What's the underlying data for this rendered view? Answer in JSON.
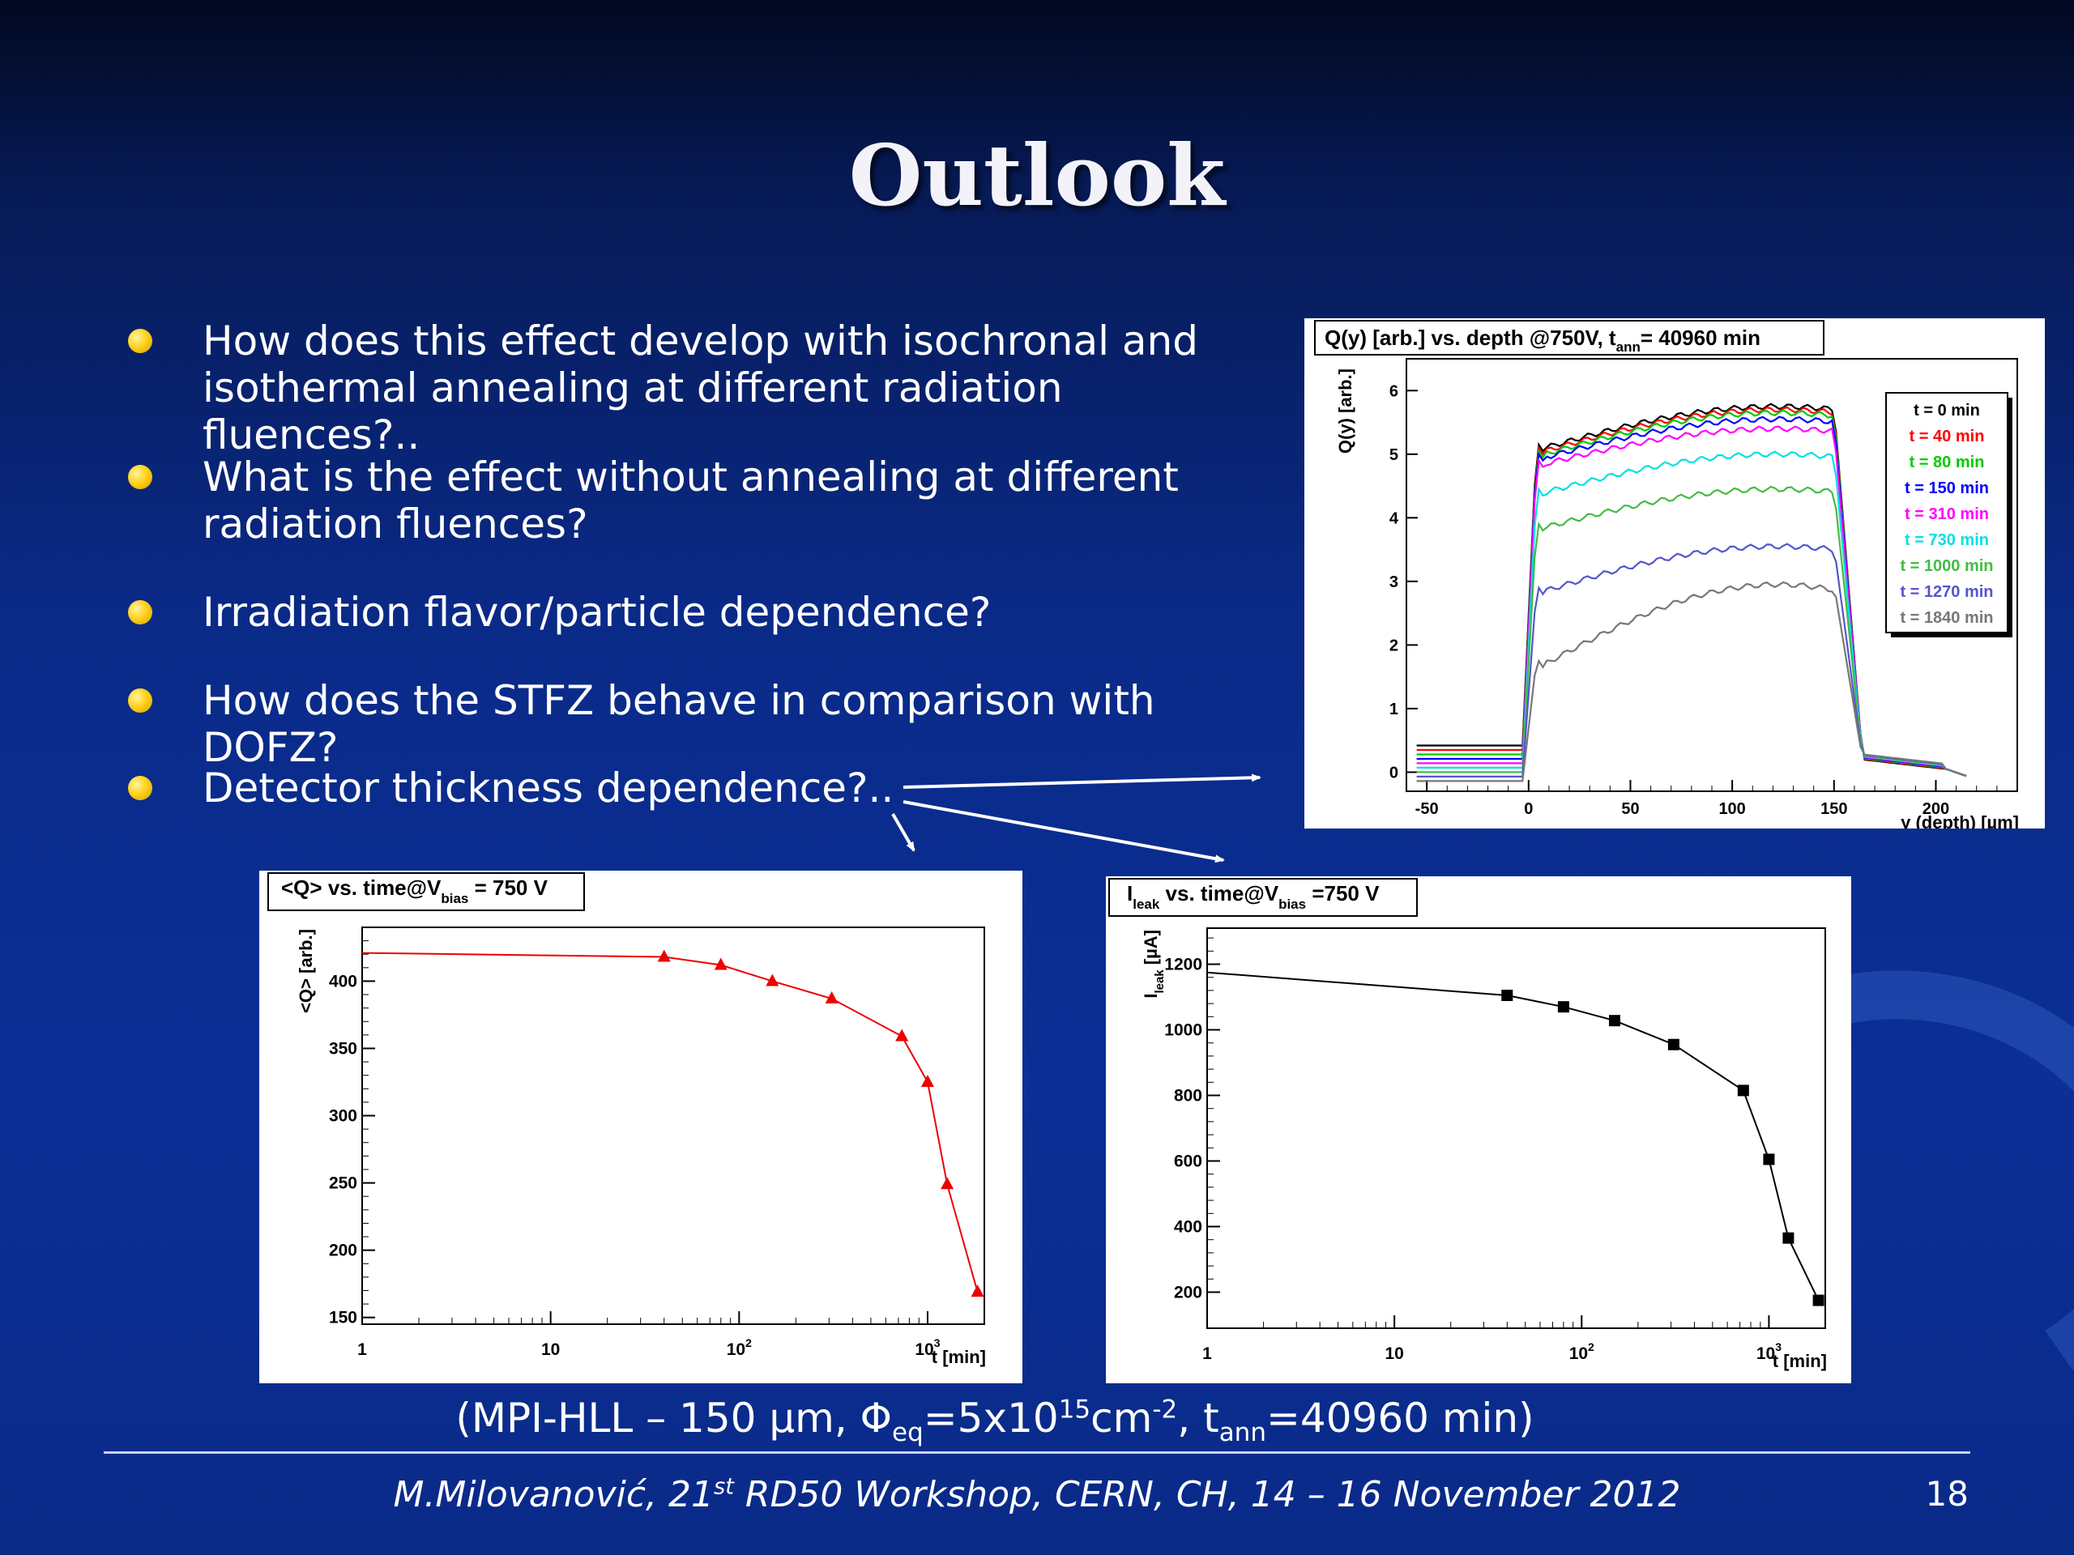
{
  "slide": {
    "title": "Outlook",
    "bullets": [
      "How does this effect develop with isochronal and isothermal annealing at different radiation fluences?..",
      "What is the effect without annealing at different radiation fluences?",
      "Irradiation flavor/particle dependence?",
      "How does the STFZ behave in comparison with DOFZ?",
      "Detector thickness dependence?.."
    ],
    "caption": {
      "open": "(MPI-HLL – 150 µm, Φ",
      "phi_sub": "eq",
      "fluence": "=5x10",
      "fluence_exp": "15",
      "unit": "cm",
      "unit_exp": "-2",
      "t_sep": ", t",
      "t_sub": "ann",
      "t_val": "=40960 min)"
    },
    "footer": {
      "author": "M.Milovanović, 21",
      "ord": "st",
      "event": " RD50 Workshop, CERN, CH, 14 – 16 November 2012"
    },
    "page_number": "18",
    "colors": {
      "bullet": "#ffd21a",
      "background": "#0a2a88"
    }
  },
  "chart_data": [
    {
      "type": "line",
      "title": "Q(y) [arb.] vs. depth @750V, t",
      "title_sub": "ann",
      "title_tail": "= 40960 min",
      "xlabel": "y (depth) [µm]",
      "ylabel": "Q(y) [arb.]",
      "xlim": [
        -60,
        240
      ],
      "ylim": [
        -0.3,
        6.5
      ],
      "xticks": [
        "-50",
        "0",
        "50",
        "100",
        "150",
        "200"
      ],
      "yticks": [
        "0",
        "1",
        "2",
        "3",
        "4",
        "5",
        "6"
      ],
      "legend_position": "top-right",
      "series": [
        {
          "name": "t = 0 min",
          "color": "#000000",
          "plateau": [
            5.1,
            5.75
          ]
        },
        {
          "name": "t = 40 min",
          "color": "#ff0000",
          "plateau": [
            5.05,
            5.7
          ]
        },
        {
          "name": "t = 80 min",
          "color": "#00cc00",
          "plateau": [
            5.0,
            5.65
          ]
        },
        {
          "name": "t = 150 min",
          "color": "#0000ff",
          "plateau": [
            4.95,
            5.55
          ]
        },
        {
          "name": "t = 310 min",
          "color": "#ff00ff",
          "plateau": [
            4.85,
            5.4
          ]
        },
        {
          "name": "t = 730 min",
          "color": "#00e0e0",
          "plateau": [
            4.4,
            5.0
          ]
        },
        {
          "name": "t = 1000 min",
          "color": "#44bb44",
          "plateau": [
            3.85,
            4.45
          ]
        },
        {
          "name": "t = 1270 min",
          "color": "#5555cc",
          "plateau": [
            2.85,
            3.55
          ]
        },
        {
          "name": "t = 1840 min",
          "color": "#777777",
          "plateau": [
            1.7,
            2.95
          ]
        }
      ]
    },
    {
      "type": "line",
      "scale": "log-x",
      "title": "<Q> vs. time@V",
      "title_sub": "bias",
      "title_tail": " = 750 V",
      "xlabel": "t [min]",
      "ylabel": "<Q> [arb.]",
      "xlim": [
        1,
        2000
      ],
      "ylim": [
        145,
        440
      ],
      "xticks": [
        "1",
        "10",
        "10",
        "10"
      ],
      "xtick_exps": [
        "",
        "",
        "2",
        "3"
      ],
      "yticks": [
        "150",
        "200",
        "250",
        "300",
        "350",
        "400"
      ],
      "color": "#ee0000",
      "marker": "triangle",
      "x": [
        1,
        40,
        80,
        150,
        310,
        730,
        1000,
        1270,
        1840
      ],
      "y": [
        421,
        418,
        412,
        400,
        387,
        359,
        325,
        249,
        169
      ]
    },
    {
      "type": "line",
      "scale": "log-x",
      "title": "I",
      "title_sub": "leak",
      "title_tail": " vs. time@V",
      "title_sub2": "bias",
      "title_tail2": " =750 V",
      "xlabel": "t [min]",
      "ylabel": "I",
      "ylabel_sub": "leak",
      "ylabel_tail": " [µA]",
      "xlim": [
        1,
        2000
      ],
      "ylim": [
        90,
        1310
      ],
      "xticks": [
        "1",
        "10",
        "10",
        "10"
      ],
      "xtick_exps": [
        "",
        "",
        "2",
        "3"
      ],
      "yticks": [
        "200",
        "400",
        "600",
        "800",
        "1000",
        "1200"
      ],
      "color": "#000000",
      "marker": "square",
      "x": [
        1,
        40,
        80,
        150,
        310,
        730,
        1000,
        1270,
        1840
      ],
      "y": [
        1175,
        1105,
        1070,
        1028,
        955,
        815,
        605,
        365,
        175
      ]
    }
  ]
}
